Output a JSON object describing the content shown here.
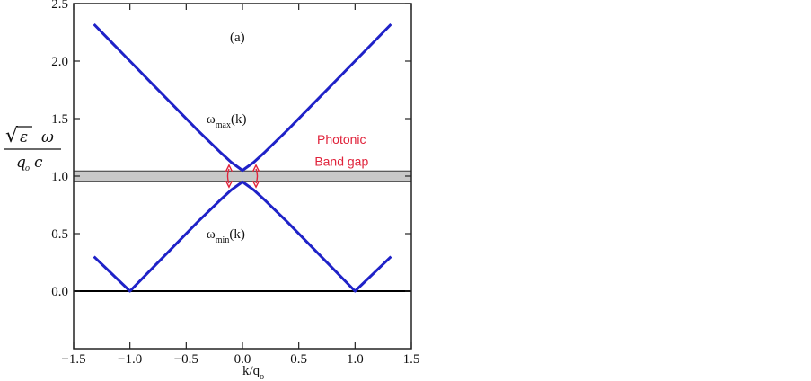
{
  "chart_data": {
    "type": "line",
    "panel_label": "(a)",
    "xlabel": "k/q",
    "xlabel_sub": "o",
    "ylabel": {
      "sqrt": "√",
      "numerator_var": "ε",
      "numerator_omega": "ω",
      "denom_q": "q",
      "denom_sub": "o",
      "denom_c": "c"
    },
    "xlim": [
      -1.5,
      1.5
    ],
    "ylim": [
      -0.5,
      2.5
    ],
    "x_ticks": [
      -1.5,
      -1.0,
      -0.5,
      0.0,
      0.5,
      1.0,
      1.5
    ],
    "x_tick_labels": [
      "−1.5",
      "−1.0",
      "−0.5",
      "0.0",
      "0.5",
      "1.0",
      "1.5"
    ],
    "y_ticks": [
      0.0,
      0.5,
      1.0,
      1.5,
      2.0,
      2.5
    ],
    "y_tick_labels": [
      "0.0",
      "0.5",
      "1.0",
      "1.5",
      "2.0",
      "2.5"
    ],
    "grid": false,
    "series": [
      {
        "color": "#1f22c8",
        "x": [
          -1.32,
          -1.0,
          -0.8,
          -0.6,
          -0.4,
          -0.2,
          -0.1,
          0.0,
          0.1,
          0.2,
          0.4,
          0.6,
          0.8,
          1.0,
          1.32
        ],
        "y": [
          2.32,
          2.0,
          1.8,
          1.6,
          1.4,
          1.21,
          1.12,
          1.05,
          1.12,
          1.21,
          1.4,
          1.6,
          1.8,
          2.0,
          2.32
        ]
      },
      {
        "color": "#1f22c8",
        "x": [
          -1.32,
          -1.0,
          -0.8,
          -0.6,
          -0.4,
          -0.2,
          -0.1,
          0.0,
          0.1,
          0.2,
          0.4,
          0.6,
          0.8,
          1.0,
          1.32
        ],
        "y": [
          0.3,
          0.0,
          0.2,
          0.4,
          0.6,
          0.79,
          0.88,
          0.95,
          0.88,
          0.79,
          0.6,
          0.4,
          0.2,
          0.0,
          0.3
        ]
      }
    ],
    "baseline": {
      "y": 0.0,
      "color": "#000000"
    },
    "band_gap": {
      "y0": 0.955,
      "y1": 1.045,
      "color": "#c8c8c8"
    },
    "gap_arrows": {
      "x": [
        -0.12,
        0.12
      ],
      "color": "#e0223a"
    },
    "annotations": {
      "omega_max": {
        "text": "ω",
        "sub": "max",
        "suffix": "(k)",
        "x": -0.32,
        "y": 1.5
      },
      "omega_min": {
        "text": "ω",
        "sub": "min",
        "suffix": "(k)",
        "x": -0.32,
        "y": 0.5
      },
      "photonic": {
        "line1": "Photonic",
        "line2": "Band gap",
        "x": 0.88,
        "y1": 1.32,
        "y2": 1.13
      }
    }
  }
}
